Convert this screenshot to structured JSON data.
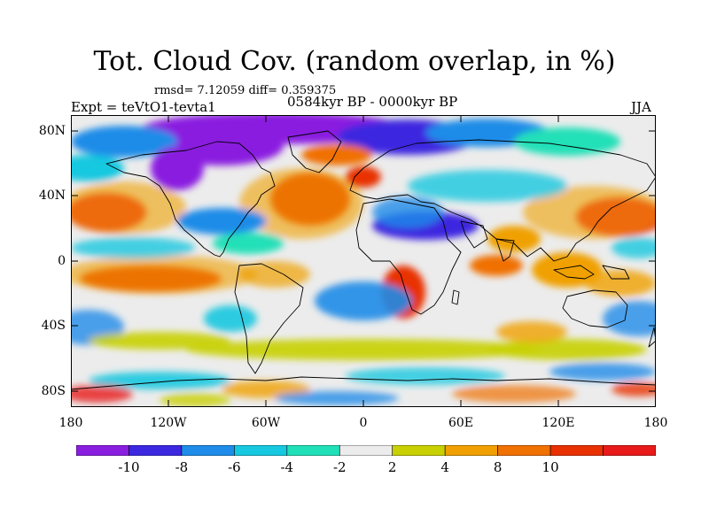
{
  "title": "Tot. Cloud Cov. (random overlap, in %)",
  "stats": "rmsd= 7.12059 diff= 0.359375",
  "expt_label": "Expt = teVtO1-tevta1",
  "period_label": "0584kyr BP - 0000kyr BP",
  "season": "JJA",
  "lat_labels": [
    "80N",
    "40N",
    "0",
    "40S",
    "80S"
  ],
  "lon_labels": [
    "180",
    "120W",
    "60W",
    "0",
    "60E",
    "120E",
    "180"
  ],
  "colorbar": {
    "labels": [
      "-10",
      "-8",
      "-6",
      "-4",
      "-2",
      "2",
      "4",
      "8",
      "10"
    ],
    "colors": [
      "#8a1ee0",
      "#3c28e0",
      "#1e8ce8",
      "#16c8e0",
      "#20e0b8",
      "#ececec",
      "#c8d000",
      "#f0a000",
      "#f07000",
      "#e83000",
      "#e81a1a"
    ]
  }
}
